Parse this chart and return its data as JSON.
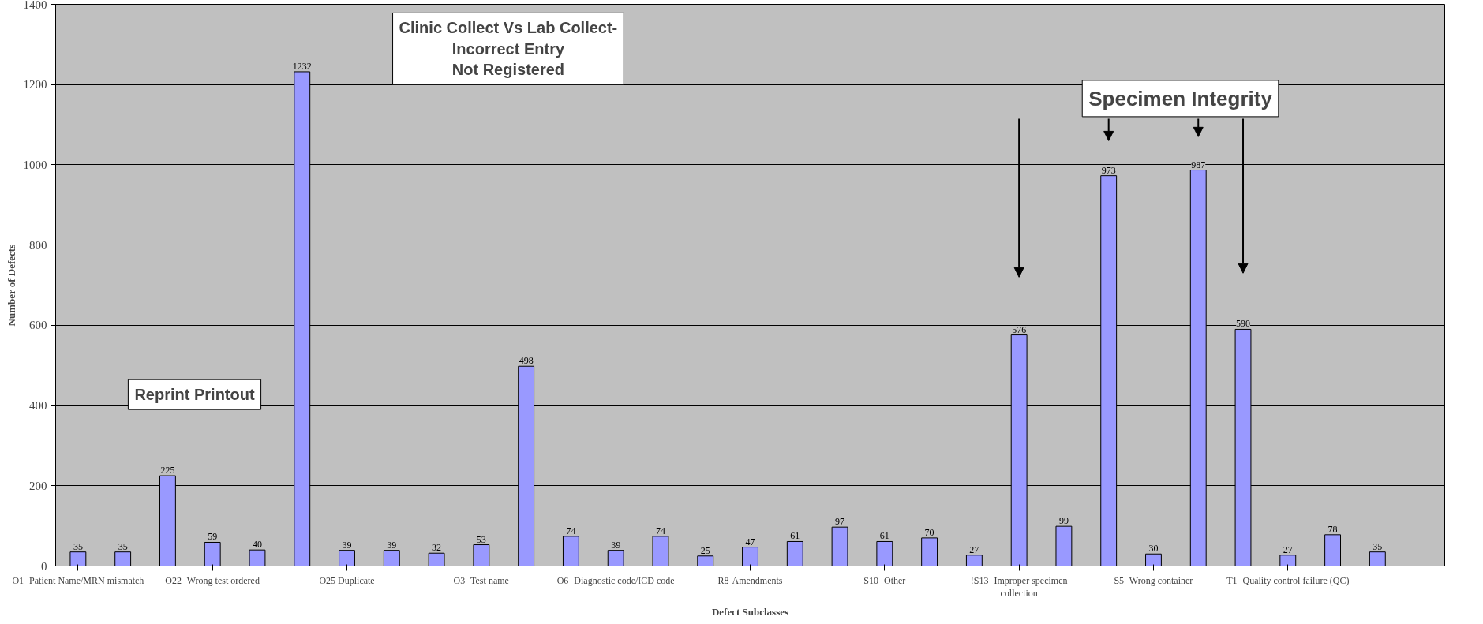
{
  "chart_data": {
    "type": "bar",
    "xlabel": "Defect Subclasses",
    "ylabel": "Number of Defects",
    "categories": [
      "O1- Patient Name/MRN mismatch",
      null,
      null,
      "O22- Wrong test ordered",
      null,
      null,
      "O25 Duplicate",
      null,
      null,
      "O3- Test name",
      null,
      null,
      "O6- Diagnostic code/ICD code",
      null,
      null,
      "R8-Amendments",
      null,
      null,
      "S10- Other",
      null,
      null,
      "!S13- Improper specimen\ncollection",
      null,
      null,
      "S5- Wrong container",
      null,
      null,
      "T1- Quality control failure (QC)",
      null,
      null
    ],
    "values": [
      35,
      35,
      225,
      59,
      40,
      1232,
      39,
      39,
      32,
      53,
      498,
      74,
      39,
      74,
      25,
      47,
      61,
      97,
      61,
      70,
      27,
      576,
      99,
      973,
      30,
      987,
      590,
      27,
      78,
      35
    ],
    "color": "#9999ff",
    "ylim": [
      0,
      1400
    ],
    "yticks": [
      0,
      200,
      400,
      600,
      800,
      1000,
      1200,
      1400
    ],
    "grid": "y",
    "data_labels": true,
    "annotations": [
      "Reprint Printout",
      "Clinic Collect Vs Lab Collect-\nIncorrect Entry\nNot Registered",
      "Specimen Integrity"
    ]
  }
}
